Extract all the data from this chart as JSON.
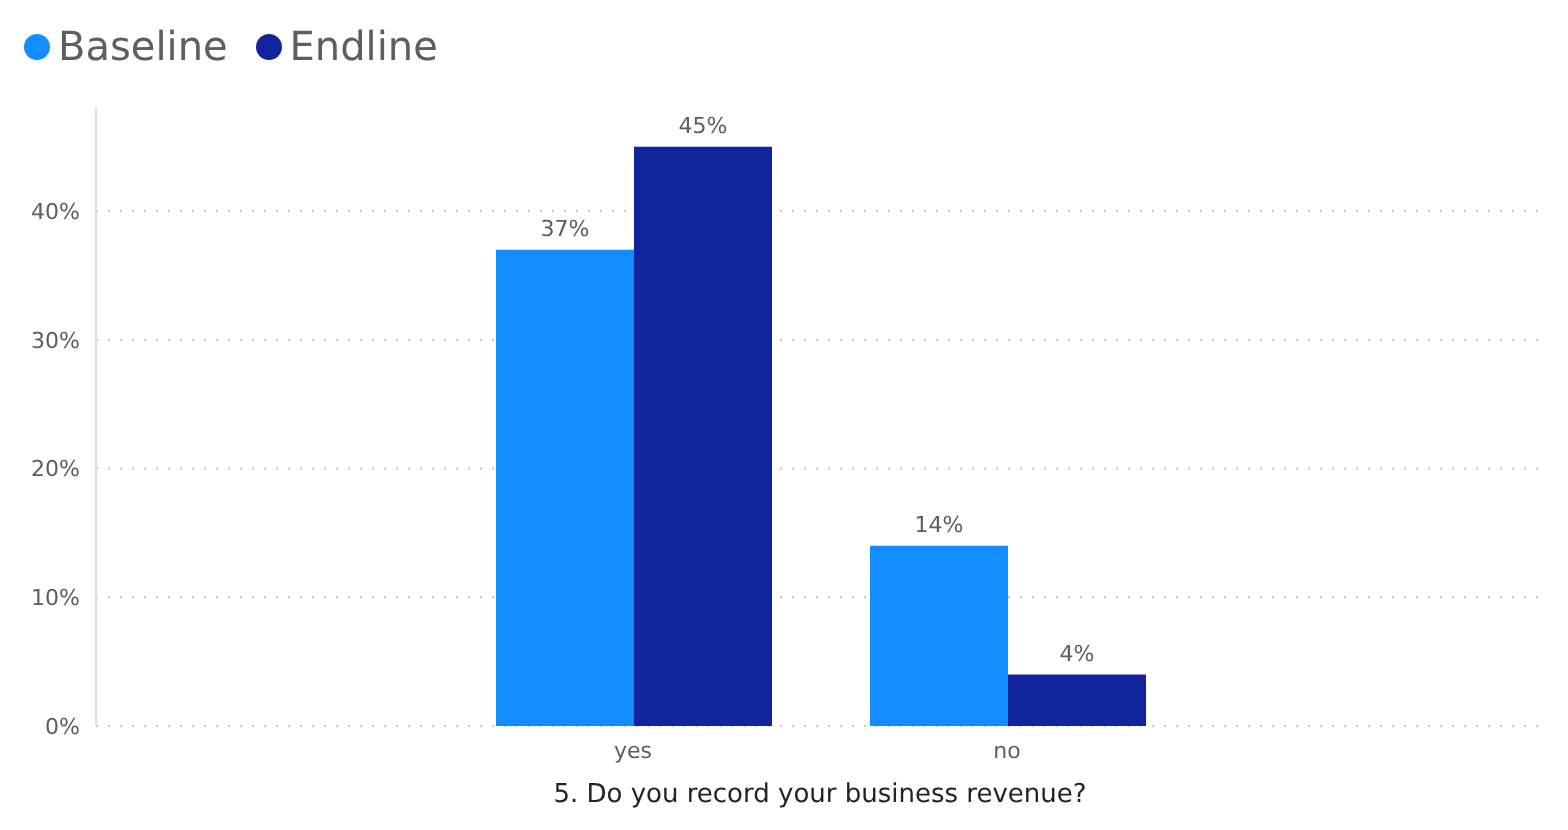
{
  "chart_data": {
    "type": "bar",
    "xlabel": "5. Do you record your business revenue?",
    "categories": [
      "yes",
      "no"
    ],
    "series": [
      {
        "name": "Baseline",
        "color": "#118dff",
        "values": [
          37,
          14
        ],
        "value_labels": [
          "37%",
          "14%"
        ]
      },
      {
        "name": "Endline",
        "color": "#12239e",
        "values": [
          45,
          4
        ],
        "value_labels": [
          "45%",
          "4%"
        ]
      }
    ],
    "ylim": [
      0,
      48
    ],
    "yticks": [
      {
        "value": 0,
        "label": "0%"
      },
      {
        "value": 10,
        "label": "10%"
      },
      {
        "value": 20,
        "label": "20%"
      },
      {
        "value": 30,
        "label": "30%"
      },
      {
        "value": 40,
        "label": "40%"
      }
    ],
    "grid": "y",
    "legend": "top left"
  }
}
